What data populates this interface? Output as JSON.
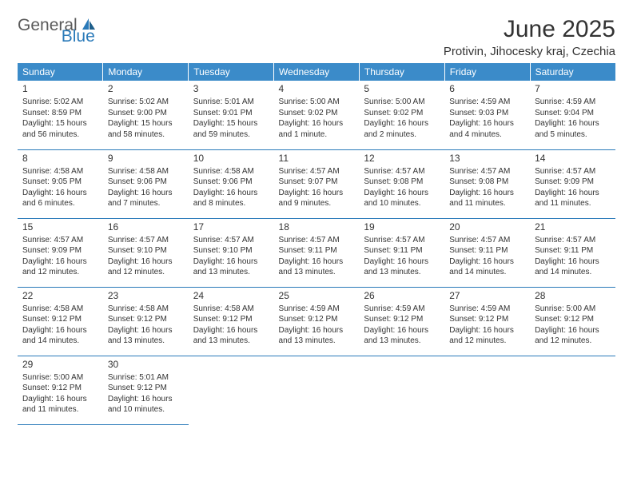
{
  "logo": {
    "text1": "General",
    "text2": "Blue"
  },
  "title": "June 2025",
  "location": "Protivin, Jihocesky kraj, Czechia",
  "colors": {
    "header_bg": "#3b8bc9",
    "header_text": "#ffffff",
    "border": "#2a7ab9",
    "text": "#333333",
    "logo_gray": "#5a5a5a",
    "logo_blue": "#2a7ab9",
    "background": "#ffffff"
  },
  "typography": {
    "title_fontsize": 30,
    "location_fontsize": 15,
    "header_fontsize": 12,
    "daynum_fontsize": 12,
    "cell_fontsize": 10
  },
  "weekdays": [
    "Sunday",
    "Monday",
    "Tuesday",
    "Wednesday",
    "Thursday",
    "Friday",
    "Saturday"
  ],
  "days": [
    {
      "n": "1",
      "sunrise": "Sunrise: 5:02 AM",
      "sunset": "Sunset: 8:59 PM",
      "day1": "Daylight: 15 hours",
      "day2": "and 56 minutes."
    },
    {
      "n": "2",
      "sunrise": "Sunrise: 5:02 AM",
      "sunset": "Sunset: 9:00 PM",
      "day1": "Daylight: 15 hours",
      "day2": "and 58 minutes."
    },
    {
      "n": "3",
      "sunrise": "Sunrise: 5:01 AM",
      "sunset": "Sunset: 9:01 PM",
      "day1": "Daylight: 15 hours",
      "day2": "and 59 minutes."
    },
    {
      "n": "4",
      "sunrise": "Sunrise: 5:00 AM",
      "sunset": "Sunset: 9:02 PM",
      "day1": "Daylight: 16 hours",
      "day2": "and 1 minute."
    },
    {
      "n": "5",
      "sunrise": "Sunrise: 5:00 AM",
      "sunset": "Sunset: 9:02 PM",
      "day1": "Daylight: 16 hours",
      "day2": "and 2 minutes."
    },
    {
      "n": "6",
      "sunrise": "Sunrise: 4:59 AM",
      "sunset": "Sunset: 9:03 PM",
      "day1": "Daylight: 16 hours",
      "day2": "and 4 minutes."
    },
    {
      "n": "7",
      "sunrise": "Sunrise: 4:59 AM",
      "sunset": "Sunset: 9:04 PM",
      "day1": "Daylight: 16 hours",
      "day2": "and 5 minutes."
    },
    {
      "n": "8",
      "sunrise": "Sunrise: 4:58 AM",
      "sunset": "Sunset: 9:05 PM",
      "day1": "Daylight: 16 hours",
      "day2": "and 6 minutes."
    },
    {
      "n": "9",
      "sunrise": "Sunrise: 4:58 AM",
      "sunset": "Sunset: 9:06 PM",
      "day1": "Daylight: 16 hours",
      "day2": "and 7 minutes."
    },
    {
      "n": "10",
      "sunrise": "Sunrise: 4:58 AM",
      "sunset": "Sunset: 9:06 PM",
      "day1": "Daylight: 16 hours",
      "day2": "and 8 minutes."
    },
    {
      "n": "11",
      "sunrise": "Sunrise: 4:57 AM",
      "sunset": "Sunset: 9:07 PM",
      "day1": "Daylight: 16 hours",
      "day2": "and 9 minutes."
    },
    {
      "n": "12",
      "sunrise": "Sunrise: 4:57 AM",
      "sunset": "Sunset: 9:08 PM",
      "day1": "Daylight: 16 hours",
      "day2": "and 10 minutes."
    },
    {
      "n": "13",
      "sunrise": "Sunrise: 4:57 AM",
      "sunset": "Sunset: 9:08 PM",
      "day1": "Daylight: 16 hours",
      "day2": "and 11 minutes."
    },
    {
      "n": "14",
      "sunrise": "Sunrise: 4:57 AM",
      "sunset": "Sunset: 9:09 PM",
      "day1": "Daylight: 16 hours",
      "day2": "and 11 minutes."
    },
    {
      "n": "15",
      "sunrise": "Sunrise: 4:57 AM",
      "sunset": "Sunset: 9:09 PM",
      "day1": "Daylight: 16 hours",
      "day2": "and 12 minutes."
    },
    {
      "n": "16",
      "sunrise": "Sunrise: 4:57 AM",
      "sunset": "Sunset: 9:10 PM",
      "day1": "Daylight: 16 hours",
      "day2": "and 12 minutes."
    },
    {
      "n": "17",
      "sunrise": "Sunrise: 4:57 AM",
      "sunset": "Sunset: 9:10 PM",
      "day1": "Daylight: 16 hours",
      "day2": "and 13 minutes."
    },
    {
      "n": "18",
      "sunrise": "Sunrise: 4:57 AM",
      "sunset": "Sunset: 9:11 PM",
      "day1": "Daylight: 16 hours",
      "day2": "and 13 minutes."
    },
    {
      "n": "19",
      "sunrise": "Sunrise: 4:57 AM",
      "sunset": "Sunset: 9:11 PM",
      "day1": "Daylight: 16 hours",
      "day2": "and 13 minutes."
    },
    {
      "n": "20",
      "sunrise": "Sunrise: 4:57 AM",
      "sunset": "Sunset: 9:11 PM",
      "day1": "Daylight: 16 hours",
      "day2": "and 14 minutes."
    },
    {
      "n": "21",
      "sunrise": "Sunrise: 4:57 AM",
      "sunset": "Sunset: 9:11 PM",
      "day1": "Daylight: 16 hours",
      "day2": "and 14 minutes."
    },
    {
      "n": "22",
      "sunrise": "Sunrise: 4:58 AM",
      "sunset": "Sunset: 9:12 PM",
      "day1": "Daylight: 16 hours",
      "day2": "and 14 minutes."
    },
    {
      "n": "23",
      "sunrise": "Sunrise: 4:58 AM",
      "sunset": "Sunset: 9:12 PM",
      "day1": "Daylight: 16 hours",
      "day2": "and 13 minutes."
    },
    {
      "n": "24",
      "sunrise": "Sunrise: 4:58 AM",
      "sunset": "Sunset: 9:12 PM",
      "day1": "Daylight: 16 hours",
      "day2": "and 13 minutes."
    },
    {
      "n": "25",
      "sunrise": "Sunrise: 4:59 AM",
      "sunset": "Sunset: 9:12 PM",
      "day1": "Daylight: 16 hours",
      "day2": "and 13 minutes."
    },
    {
      "n": "26",
      "sunrise": "Sunrise: 4:59 AM",
      "sunset": "Sunset: 9:12 PM",
      "day1": "Daylight: 16 hours",
      "day2": "and 13 minutes."
    },
    {
      "n": "27",
      "sunrise": "Sunrise: 4:59 AM",
      "sunset": "Sunset: 9:12 PM",
      "day1": "Daylight: 16 hours",
      "day2": "and 12 minutes."
    },
    {
      "n": "28",
      "sunrise": "Sunrise: 5:00 AM",
      "sunset": "Sunset: 9:12 PM",
      "day1": "Daylight: 16 hours",
      "day2": "and 12 minutes."
    },
    {
      "n": "29",
      "sunrise": "Sunrise: 5:00 AM",
      "sunset": "Sunset: 9:12 PM",
      "day1": "Daylight: 16 hours",
      "day2": "and 11 minutes."
    },
    {
      "n": "30",
      "sunrise": "Sunrise: 5:01 AM",
      "sunset": "Sunset: 9:12 PM",
      "day1": "Daylight: 16 hours",
      "day2": "and 10 minutes."
    }
  ]
}
